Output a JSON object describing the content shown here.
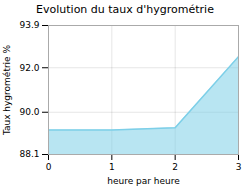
{
  "chart_data": {
    "type": "area",
    "title": "Evolution du taux d'hygrométrie",
    "xlabel": "heure par heure",
    "ylabel": "Taux hygrométrie %",
    "x": [
      0,
      1,
      2,
      3
    ],
    "values": [
      89.2,
      89.2,
      89.3,
      92.5
    ],
    "color": "#7dcfe8",
    "xlim": [
      0,
      3
    ],
    "xticks": [
      0,
      1,
      2,
      3
    ],
    "ylim": [
      88.1,
      93.9
    ],
    "yticks": [
      88.1,
      {
        "value": 90.0,
        "label": "90.0"
      },
      {
        "value": 92.0,
        "label": "92.0"
      },
      93.9
    ],
    "grid": true
  }
}
